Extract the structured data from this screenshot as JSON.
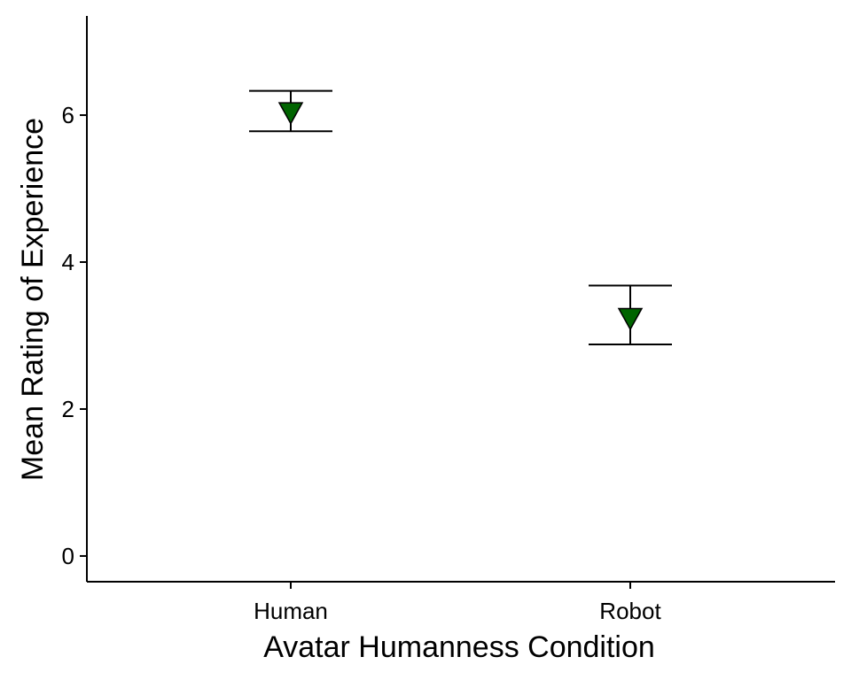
{
  "chart_data": {
    "type": "scatter",
    "title": "",
    "xlabel": "Avatar Humanness Condition",
    "ylabel": "Mean Rating of Experience",
    "categories": [
      "Human",
      "Robot"
    ],
    "values": [
      6.05,
      3.25
    ],
    "error_lower": [
      5.78,
      2.88
    ],
    "error_upper": [
      6.33,
      3.68
    ],
    "ylim": [
      -0.35,
      7.35
    ],
    "yticks": [
      0,
      2,
      4,
      6
    ],
    "marker": "triangle-down",
    "marker_color": "#006400",
    "grid": false,
    "legend": "none"
  }
}
